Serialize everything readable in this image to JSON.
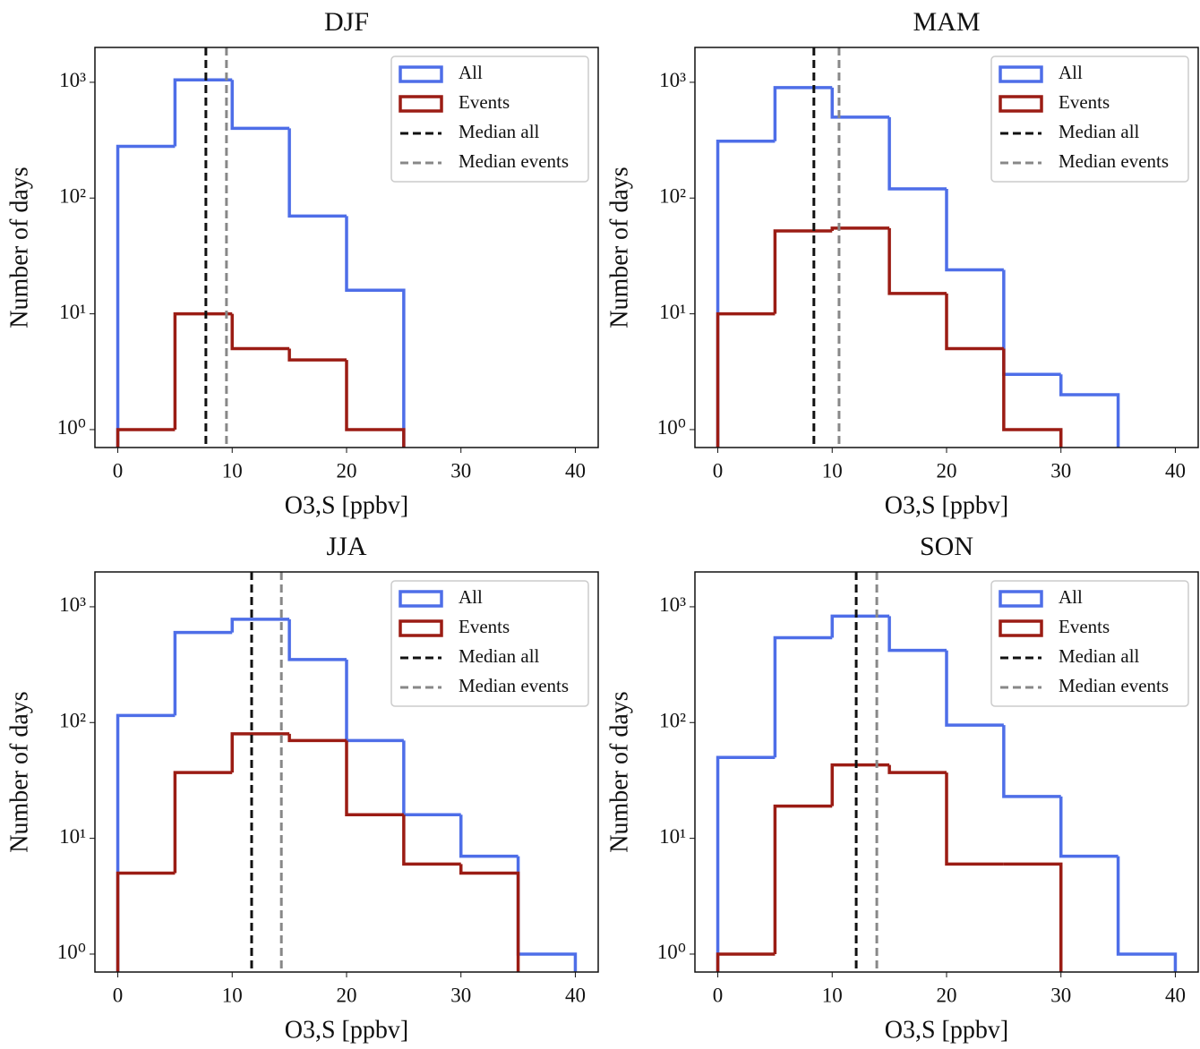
{
  "chart_data": [
    {
      "type": "histogram",
      "title": "DJF",
      "xlabel": "O3,S [ppbv]",
      "ylabel": "Number of days",
      "log_y": true,
      "legend": "upper right",
      "xlim": [
        -2,
        42
      ],
      "ylim": [
        0.7,
        2000
      ],
      "xticks": [
        0,
        10,
        20,
        30,
        40
      ],
      "yticks": [
        {
          "value": 1,
          "label": "10⁰"
        },
        {
          "value": 10,
          "label": "10¹"
        },
        {
          "value": 100,
          "label": "10²"
        },
        {
          "value": 1000,
          "label": "10³"
        }
      ],
      "series": [
        {
          "name": "All",
          "color": "#4e6ee8",
          "bins": [
            0,
            5,
            10,
            15,
            20,
            25
          ],
          "values": [
            280,
            1050,
            400,
            70,
            16
          ]
        },
        {
          "name": "Events",
          "color": "#9b1c14",
          "bins": [
            0,
            5,
            10,
            15,
            20,
            25
          ],
          "values": [
            1,
            10,
            5,
            4,
            1
          ]
        }
      ],
      "vlines": [
        {
          "name": "Median all",
          "color": "#111111",
          "value": 7.7
        },
        {
          "name": "Median events",
          "color": "#888888",
          "value": 9.5
        }
      ]
    },
    {
      "type": "histogram",
      "title": "MAM",
      "xlabel": "O3,S [ppbv]",
      "ylabel": "Number of days",
      "log_y": true,
      "legend": "upper right",
      "xlim": [
        -2,
        42
      ],
      "ylim": [
        0.7,
        2000
      ],
      "xticks": [
        0,
        10,
        20,
        30,
        40
      ],
      "yticks": [
        {
          "value": 1,
          "label": "10⁰"
        },
        {
          "value": 10,
          "label": "10¹"
        },
        {
          "value": 100,
          "label": "10²"
        },
        {
          "value": 1000,
          "label": "10³"
        }
      ],
      "series": [
        {
          "name": "All",
          "color": "#4e6ee8",
          "bins": [
            0,
            5,
            10,
            15,
            20,
            25,
            30,
            35
          ],
          "values": [
            310,
            900,
            500,
            120,
            24,
            3,
            2
          ]
        },
        {
          "name": "Events",
          "color": "#9b1c14",
          "bins": [
            0,
            5,
            10,
            15,
            20,
            25,
            30
          ],
          "values": [
            10,
            52,
            55,
            15,
            5,
            1
          ]
        }
      ],
      "vlines": [
        {
          "name": "Median all",
          "color": "#111111",
          "value": 8.4
        },
        {
          "name": "Median events",
          "color": "#888888",
          "value": 10.6
        }
      ]
    },
    {
      "type": "histogram",
      "title": "JJA",
      "xlabel": "O3,S [ppbv]",
      "ylabel": "Number of days",
      "log_y": true,
      "legend": "upper right",
      "xlim": [
        -2,
        42
      ],
      "ylim": [
        0.7,
        2000
      ],
      "xticks": [
        0,
        10,
        20,
        30,
        40
      ],
      "yticks": [
        {
          "value": 1,
          "label": "10⁰"
        },
        {
          "value": 10,
          "label": "10¹"
        },
        {
          "value": 100,
          "label": "10²"
        },
        {
          "value": 1000,
          "label": "10³"
        }
      ],
      "series": [
        {
          "name": "All",
          "color": "#4e6ee8",
          "bins": [
            0,
            5,
            10,
            15,
            20,
            25,
            30,
            35,
            40
          ],
          "values": [
            115,
            600,
            780,
            350,
            70,
            16,
            7,
            1
          ]
        },
        {
          "name": "Events",
          "color": "#9b1c14",
          "bins": [
            0,
            5,
            10,
            15,
            20,
            25,
            30,
            35
          ],
          "values": [
            5,
            37,
            80,
            70,
            16,
            6,
            5
          ]
        }
      ],
      "vlines": [
        {
          "name": "Median all",
          "color": "#111111",
          "value": 11.7
        },
        {
          "name": "Median events",
          "color": "#888888",
          "value": 14.3
        }
      ]
    },
    {
      "type": "histogram",
      "title": "SON",
      "xlabel": "O3,S [ppbv]",
      "ylabel": "Number of days",
      "log_y": true,
      "legend": "upper right",
      "xlim": [
        -2,
        42
      ],
      "ylim": [
        0.7,
        2000
      ],
      "xticks": [
        0,
        10,
        20,
        30,
        40
      ],
      "yticks": [
        {
          "value": 1,
          "label": "10⁰"
        },
        {
          "value": 10,
          "label": "10¹"
        },
        {
          "value": 100,
          "label": "10²"
        },
        {
          "value": 1000,
          "label": "10³"
        }
      ],
      "series": [
        {
          "name": "All",
          "color": "#4e6ee8",
          "bins": [
            0,
            5,
            10,
            15,
            20,
            25,
            30,
            35,
            40
          ],
          "values": [
            50,
            540,
            830,
            420,
            95,
            23,
            7,
            1
          ]
        },
        {
          "name": "Events",
          "color": "#9b1c14",
          "bins": [
            0,
            5,
            10,
            15,
            20,
            25,
            30
          ],
          "values": [
            1,
            19,
            43,
            37,
            6,
            6
          ]
        }
      ],
      "vlines": [
        {
          "name": "Median all",
          "color": "#111111",
          "value": 12.1
        },
        {
          "name": "Median events",
          "color": "#888888",
          "value": 13.9
        }
      ]
    }
  ]
}
